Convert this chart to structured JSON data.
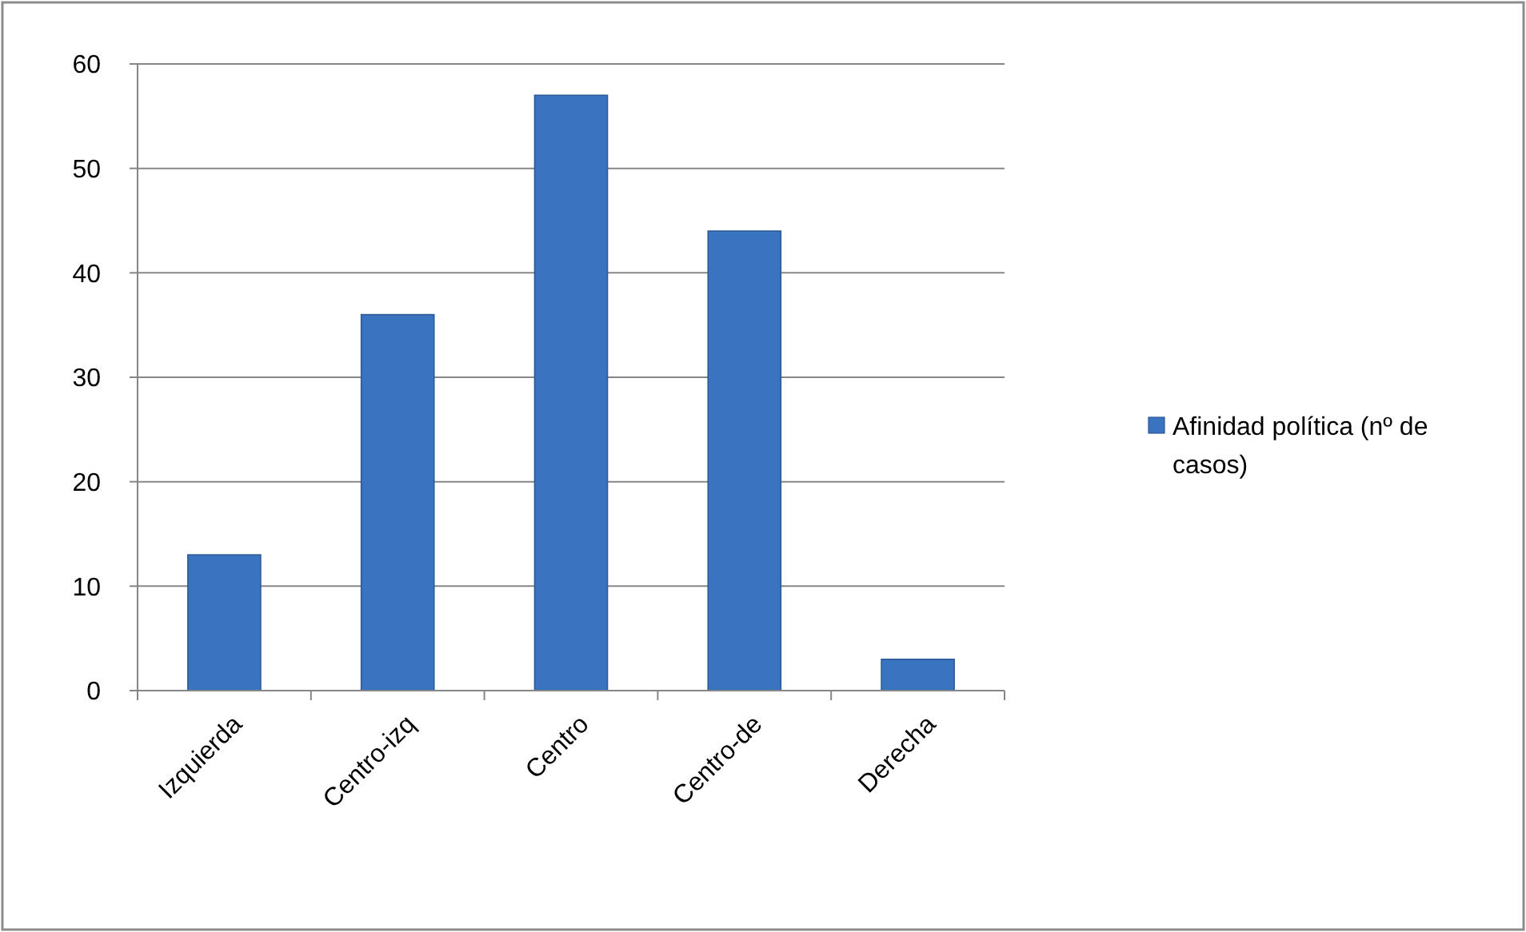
{
  "chart_data": {
    "type": "bar",
    "categories": [
      "Izquierda",
      "Centro-izq",
      "Centro",
      "Centro-de",
      "Derecha"
    ],
    "series": [
      {
        "name": "Afinidad política (nº de casos)",
        "color": "#3a74c0",
        "values": [
          13,
          36,
          57,
          44,
          3
        ]
      }
    ],
    "ylim": [
      0,
      60
    ],
    "yticks": [
      0,
      10,
      20,
      30,
      40,
      50,
      60
    ],
    "grid": "y",
    "legend": "right"
  }
}
